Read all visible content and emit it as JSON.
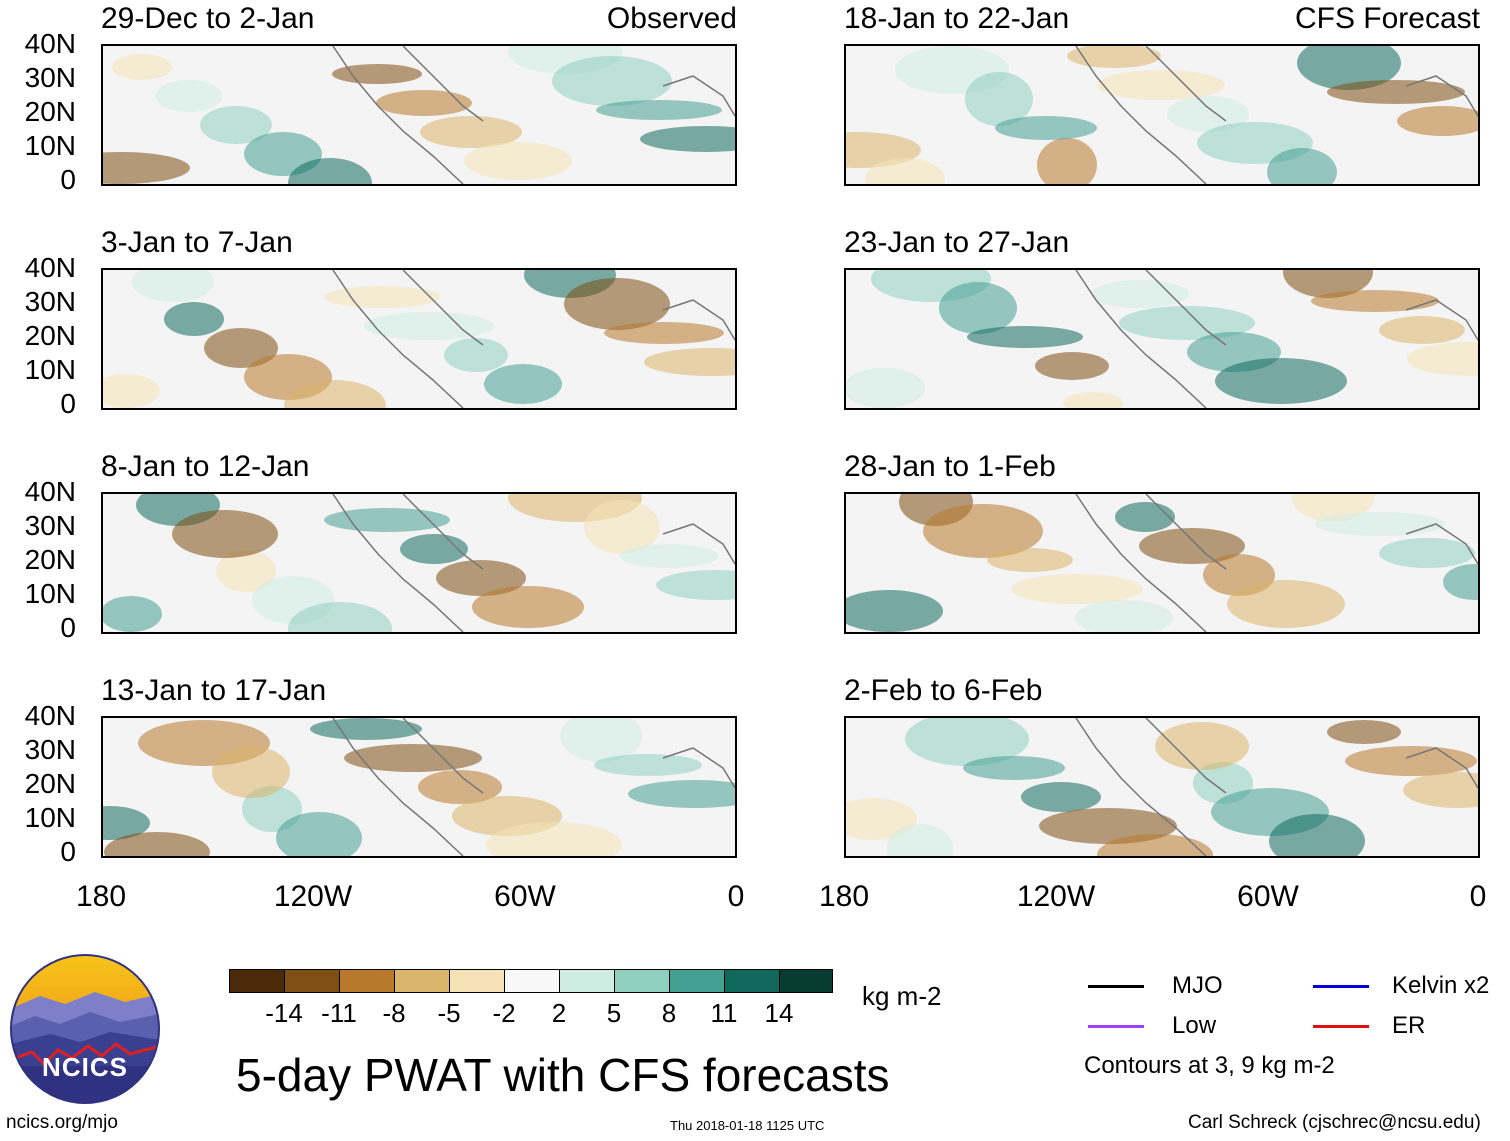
{
  "panels": [
    {
      "title": "29-Dec to 2-Jan",
      "tag": "Observed"
    },
    {
      "title": "3-Jan to 7-Jan",
      "tag": ""
    },
    {
      "title": "8-Jan to 12-Jan",
      "tag": ""
    },
    {
      "title": "13-Jan to 17-Jan",
      "tag": ""
    },
    {
      "title": "18-Jan to 22-Jan",
      "tag": "CFS Forecast"
    },
    {
      "title": "23-Jan to 27-Jan",
      "tag": ""
    },
    {
      "title": "28-Jan to 1-Feb",
      "tag": ""
    },
    {
      "title": "2-Feb to 6-Feb",
      "tag": ""
    }
  ],
  "lat_labels": [
    "40N",
    "30N",
    "20N",
    "10N",
    "0"
  ],
  "lon_labels": [
    "180",
    "120W",
    "60W",
    "0"
  ],
  "colorbar": {
    "colors": [
      "#4a2a08",
      "#7f4f13",
      "#b8792c",
      "#dab56b",
      "#f5e3b7",
      "#f8f8f8",
      "#cfece3",
      "#8fcfbf",
      "#45a094",
      "#11695e",
      "#063c32"
    ],
    "labels": [
      "-14",
      "-11",
      "-8",
      "-5",
      "-2",
      "2",
      "5",
      "8",
      "11",
      "14"
    ],
    "units": "kg m-2"
  },
  "legend": {
    "items": [
      {
        "label": "MJO",
        "color": "#000000"
      },
      {
        "label": "Kelvin x2",
        "color": "#0000dd"
      },
      {
        "label": "Low",
        "color": "#a040ff"
      },
      {
        "label": "ER",
        "color": "#e01010"
      }
    ],
    "note": "Contours at 3, 9 kg m-2"
  },
  "main_title": "5-day PWAT with CFS forecasts",
  "logo_text": "NCICS",
  "footer": {
    "left": "ncics.org/mjo",
    "center": "Thu 2018-01-18 1125 UTC",
    "right": "Carl Schreck (cjschrec@ncsu.edu)"
  }
}
